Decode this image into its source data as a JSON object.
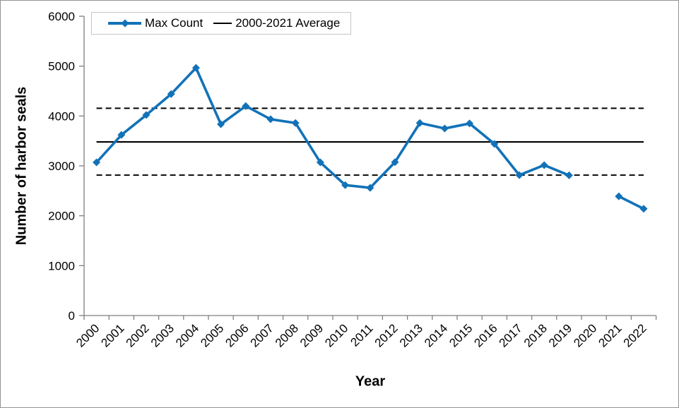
{
  "window": {
    "background": "#ffffff",
    "border_color": "#949494"
  },
  "legend": {
    "position": "top-left",
    "border_color": "#c6c6c6",
    "items": [
      {
        "label": "Max Count",
        "swatch": "line-with-diamond-marker",
        "color": "#1272b8"
      },
      {
        "label": "2000-2021 Average",
        "swatch": "line",
        "color": "#000000"
      }
    ]
  },
  "chart_data": {
    "type": "line",
    "title": "",
    "xlabel": "Year",
    "ylabel": "Number of harbor seals",
    "ylim": [
      0,
      6000
    ],
    "ytick_interval": 1000,
    "grid": false,
    "legend_position": "top-left",
    "categories": [
      "2000",
      "2001",
      "2002",
      "2003",
      "2004",
      "2005",
      "2006",
      "2007",
      "2008",
      "2009",
      "2010",
      "2011",
      "2012",
      "2013",
      "2014",
      "2015",
      "2016",
      "2017",
      "2018",
      "2019",
      "2020",
      "2021",
      "2022"
    ],
    "series": [
      {
        "name": "Max Count",
        "color": "#1272b8",
        "marker": "diamond",
        "line_width": 3.6,
        "values": [
          3070,
          3620,
          4020,
          4440,
          4965,
          3835,
          4200,
          3935,
          3860,
          3070,
          2615,
          2560,
          3075,
          3860,
          3750,
          3850,
          3440,
          2815,
          3015,
          2810,
          null,
          2390,
          2140
        ]
      }
    ],
    "reference_lines": [
      {
        "name": "2000-2021 Average",
        "value": 3480,
        "style": "solid",
        "color": "#000000"
      },
      {
        "name": "upper-dashed-bound",
        "value": 4155,
        "style": "dashed",
        "color": "#000000"
      },
      {
        "name": "lower-dashed-bound",
        "value": 2815,
        "style": "dashed",
        "color": "#000000"
      }
    ],
    "axis_color": "#7f7f7f",
    "tick_label_color": "#000000"
  }
}
